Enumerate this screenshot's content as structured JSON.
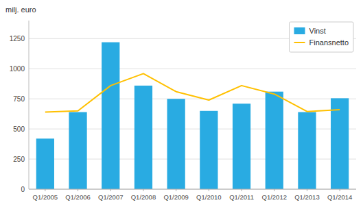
{
  "chart_data": {
    "type": "bar",
    "ylabel": "milj. euro",
    "categories": [
      "Q1/2005",
      "Q1/2006",
      "Q1/2007",
      "Q1/2008",
      "Q1/2009",
      "Q1/2010",
      "Q1/2011",
      "Q1/2012",
      "Q1/2013",
      "Q1/2014"
    ],
    "series": [
      {
        "name": "Vinst",
        "type": "bar",
        "color": "#29ABE2",
        "values": [
          420,
          640,
          1220,
          860,
          750,
          650,
          710,
          810,
          640,
          755
        ]
      },
      {
        "name": "Finansnetto",
        "type": "line",
        "color": "#FFC000",
        "values": [
          640,
          650,
          860,
          960,
          810,
          740,
          860,
          790,
          645,
          660
        ]
      }
    ],
    "ylim": [
      0,
      1400
    ],
    "yticks": [
      0,
      250,
      500,
      750,
      1000,
      1250
    ],
    "grid": true,
    "legend": "upper right"
  }
}
